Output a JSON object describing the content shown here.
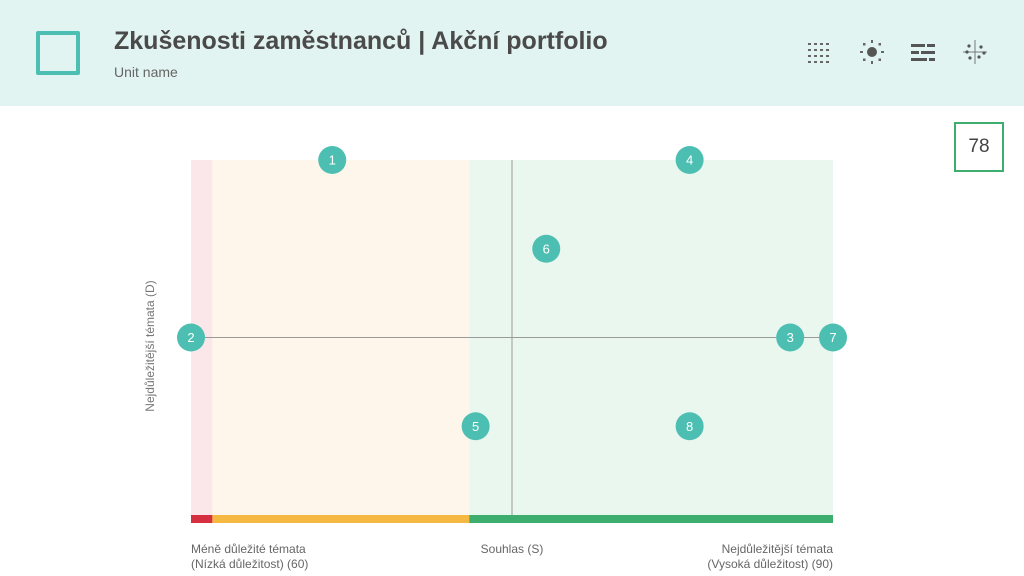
{
  "header": {
    "title": "Zkušenosti zaměstnanců | Akční portfolio",
    "unit_name": "Unit name",
    "toolbar_icons": [
      "grid-numbers-icon",
      "sun-icon",
      "sliders-icon",
      "scatter-icon"
    ]
  },
  "score": "78",
  "colors": {
    "header_bg": "#e2f4f1",
    "accent": "#4dbfb2",
    "red": "#d63040",
    "orange": "#f5b942",
    "green": "#3dae6e",
    "red_zone": "#fbe7ea",
    "orange_zone": "#fef6ea",
    "green_zone": "#e9f7ef"
  },
  "chart_data": {
    "type": "scatter",
    "ylabel": "Nejdůležitější témata  (D)",
    "xaxis_labels": {
      "left": "Méně důležité témata",
      "left_sub": "(Nízká důležitost) (60)",
      "center": "Souhlas (S)",
      "right": "Nejdůležitější témata",
      "right_sub": "(Vysoká důležitost) (90)"
    },
    "xlim": [
      60,
      90
    ],
    "ylim": [
      0,
      100
    ],
    "zones": [
      {
        "from": 60,
        "to": 61,
        "color": "red"
      },
      {
        "from": 61,
        "to": 73,
        "color": "orange"
      },
      {
        "from": 73,
        "to": 90,
        "color": "green"
      }
    ],
    "crosshair": {
      "x": 75,
      "y": 50
    },
    "points": [
      {
        "label": "1",
        "x": 66.6,
        "y": 100
      },
      {
        "label": "2",
        "x": 60,
        "y": 50
      },
      {
        "label": "3",
        "x": 88,
        "y": 50
      },
      {
        "label": "4",
        "x": 83.3,
        "y": 100
      },
      {
        "label": "5",
        "x": 73.3,
        "y": 25
      },
      {
        "label": "6",
        "x": 76.6,
        "y": 75
      },
      {
        "label": "7",
        "x": 90,
        "y": 50
      },
      {
        "label": "8",
        "x": 83.3,
        "y": 25
      }
    ]
  }
}
